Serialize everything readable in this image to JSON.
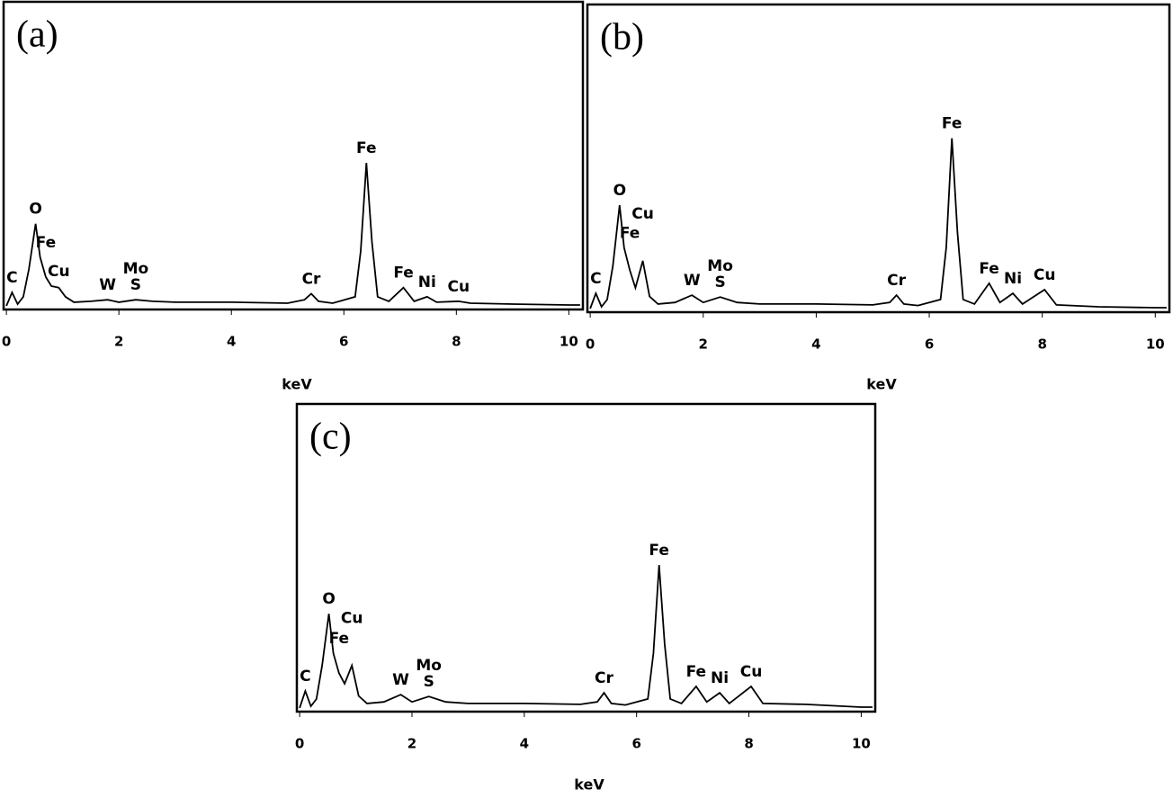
{
  "chart_data": [
    {
      "type": "line",
      "panel_label": "(a)",
      "xlabel": "keV",
      "x": [
        0,
        0.1,
        0.2,
        0.3,
        0.4,
        0.52,
        0.6,
        0.7,
        0.8,
        0.93,
        1.05,
        1.2,
        1.5,
        1.8,
        2.0,
        2.3,
        2.6,
        3,
        4,
        5,
        5.3,
        5.42,
        5.55,
        5.8,
        6.2,
        6.3,
        6.4,
        6.5,
        6.6,
        6.8,
        7.06,
        7.25,
        7.48,
        7.65,
        8.04,
        8.25,
        9,
        10,
        10.2
      ],
      "values": [
        0,
        4.4,
        0.6,
        3,
        12,
        27,
        16,
        9.5,
        6.5,
        6,
        3,
        1.2,
        1.5,
        2,
        1.2,
        2,
        1.5,
        1.2,
        1.2,
        0.9,
        2,
        4,
        1.5,
        0.9,
        3,
        18,
        47,
        21,
        3,
        1.5,
        6,
        1.5,
        3,
        1.2,
        1.5,
        0.9,
        0.6,
        0.3,
        0.3
      ],
      "color": "#000000",
      "xlim": [
        -0.05,
        10.25
      ],
      "ylim": [
        0,
        100
      ],
      "xticks": [
        0,
        2,
        4,
        6,
        8,
        10
      ],
      "annotations": [
        {
          "text": "C",
          "x": 0.1
        },
        {
          "text": "O",
          "x": 0.52
        },
        {
          "text": "Fe",
          "x": 0.7
        },
        {
          "text": "Cu",
          "x": 0.93
        },
        {
          "text": "W",
          "x": 1.8
        },
        {
          "text": "S",
          "x": 2.3
        },
        {
          "text": "Mo",
          "x": 2.3
        },
        {
          "text": "Cr",
          "x": 5.42
        },
        {
          "text": "Fe",
          "x": 6.4
        },
        {
          "text": "Fe",
          "x": 7.06
        },
        {
          "text": "Ni",
          "x": 7.48
        },
        {
          "text": "Cu",
          "x": 8.04
        }
      ]
    },
    {
      "type": "line",
      "panel_label": "(b)",
      "xlabel": "keV",
      "x": [
        0,
        0.1,
        0.2,
        0.3,
        0.4,
        0.52,
        0.6,
        0.7,
        0.8,
        0.93,
        1.05,
        1.2,
        1.5,
        1.8,
        2.0,
        2.3,
        2.6,
        3,
        4,
        5,
        5.3,
        5.42,
        5.55,
        5.8,
        6.2,
        6.3,
        6.4,
        6.5,
        6.6,
        6.8,
        7.06,
        7.25,
        7.48,
        7.65,
        8.04,
        8.25,
        9,
        10,
        10.2
      ],
      "values": [
        0,
        5,
        0.6,
        3,
        14,
        34,
        20,
        12.7,
        6.8,
        15.7,
        4,
        1.5,
        2,
        4.4,
        2,
        3.8,
        2,
        1.5,
        1.5,
        1.2,
        2,
        4.4,
        1.5,
        1,
        3,
        20,
        56,
        25,
        3,
        1.5,
        8.3,
        2,
        5,
        1.5,
        6.2,
        1.2,
        0.6,
        0.3,
        0.3
      ],
      "color": "#000000",
      "xlim": [
        -0.05,
        10.25
      ],
      "ylim": [
        0,
        100
      ],
      "xticks": [
        0,
        2,
        4,
        6,
        8,
        10
      ],
      "annotations": [
        {
          "text": "C",
          "x": 0.1
        },
        {
          "text": "O",
          "x": 0.52
        },
        {
          "text": "Fe",
          "x": 0.7
        },
        {
          "text": "Cu",
          "x": 0.93
        },
        {
          "text": "W",
          "x": 1.8
        },
        {
          "text": "S",
          "x": 2.3
        },
        {
          "text": "Mo",
          "x": 2.3
        },
        {
          "text": "Cr",
          "x": 5.42
        },
        {
          "text": "Fe",
          "x": 6.4
        },
        {
          "text": "Fe",
          "x": 7.06
        },
        {
          "text": "Ni",
          "x": 7.48
        },
        {
          "text": "Cu",
          "x": 8.04
        }
      ]
    },
    {
      "type": "line",
      "panel_label": "(c)",
      "xlabel": "keV",
      "x": [
        0,
        0.1,
        0.2,
        0.3,
        0.4,
        0.52,
        0.6,
        0.7,
        0.8,
        0.93,
        1.05,
        1.2,
        1.5,
        1.8,
        2.0,
        2.3,
        2.6,
        3,
        4,
        5,
        5.3,
        5.42,
        5.55,
        5.8,
        6.2,
        6.3,
        6.4,
        6.5,
        6.6,
        6.8,
        7.06,
        7.25,
        7.48,
        7.65,
        8.04,
        8.25,
        9,
        10,
        10.2
      ],
      "values": [
        0,
        5.6,
        0.6,
        3,
        14,
        31,
        18,
        11.5,
        8,
        14,
        4,
        1.5,
        2,
        4.4,
        2,
        3.8,
        2,
        1.5,
        1.5,
        1.2,
        2,
        5,
        1.5,
        1,
        3,
        18,
        47,
        21,
        3,
        1.5,
        7.1,
        2,
        5,
        1.5,
        7.1,
        1.5,
        1.2,
        0.3,
        0.3
      ],
      "color": "#000000",
      "xlim": [
        -0.05,
        10.25
      ],
      "ylim": [
        0,
        100
      ],
      "xticks": [
        0,
        2,
        4,
        6,
        8,
        10
      ],
      "annotations": [
        {
          "text": "C",
          "x": 0.1
        },
        {
          "text": "O",
          "x": 0.52
        },
        {
          "text": "Fe",
          "x": 0.7
        },
        {
          "text": "Cu",
          "x": 0.93
        },
        {
          "text": "W",
          "x": 1.8
        },
        {
          "text": "S",
          "x": 2.3
        },
        {
          "text": "Mo",
          "x": 2.3
        },
        {
          "text": "Cr",
          "x": 5.42
        },
        {
          "text": "Fe",
          "x": 6.4
        },
        {
          "text": "Fe",
          "x": 7.06
        },
        {
          "text": "Ni",
          "x": 7.48
        },
        {
          "text": "Cu",
          "x": 8.04
        }
      ]
    }
  ]
}
